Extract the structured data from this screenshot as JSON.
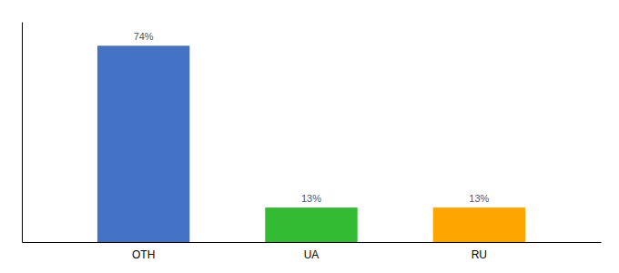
{
  "chart_data": {
    "type": "bar",
    "categories": [
      "OTH",
      "UA",
      "RU"
    ],
    "values": [
      74,
      13,
      13
    ],
    "value_labels": [
      "74%",
      "13%",
      "13%"
    ],
    "colors": [
      "#4472C4",
      "#33BB33",
      "#FFA500"
    ],
    "ylim": [
      0,
      83
    ],
    "data_labels": true,
    "tick_labels": "x",
    "grid": false
  }
}
